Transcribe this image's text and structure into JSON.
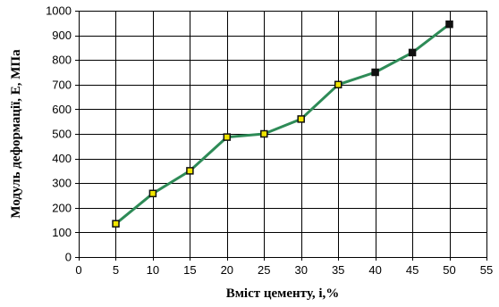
{
  "chart_data": {
    "type": "line",
    "title": "",
    "xlabel": "Вміст цементу, і,%",
    "ylabel": "Модуль деформації, Е, МПа",
    "xlim": [
      0,
      55
    ],
    "ylim": [
      0,
      1000
    ],
    "x_ticks": [
      "0",
      "5",
      "10",
      "15",
      "20",
      "25",
      "30",
      "35",
      "40",
      "45",
      "50",
      "55"
    ],
    "y_ticks": [
      "0",
      "100",
      "200",
      "300",
      "400",
      "500",
      "600",
      "700",
      "800",
      "900",
      "1000"
    ],
    "grid": true,
    "legend": "none",
    "series": [
      {
        "x": [
          5,
          10,
          15,
          20,
          25,
          30,
          35,
          40,
          45,
          50
        ],
        "y": [
          135,
          258,
          350,
          487,
          500,
          560,
          700,
          750,
          830,
          945
        ],
        "line_color": "#2e8b57",
        "marker_fill": [
          "#f2e600",
          "#f2e600",
          "#f2e600",
          "#f2e600",
          "#f2e600",
          "#f2e600",
          "#f2e600",
          "#111111",
          "#111111",
          "#111111"
        ],
        "marker_stroke": "#111111",
        "marker": "square"
      }
    ]
  }
}
